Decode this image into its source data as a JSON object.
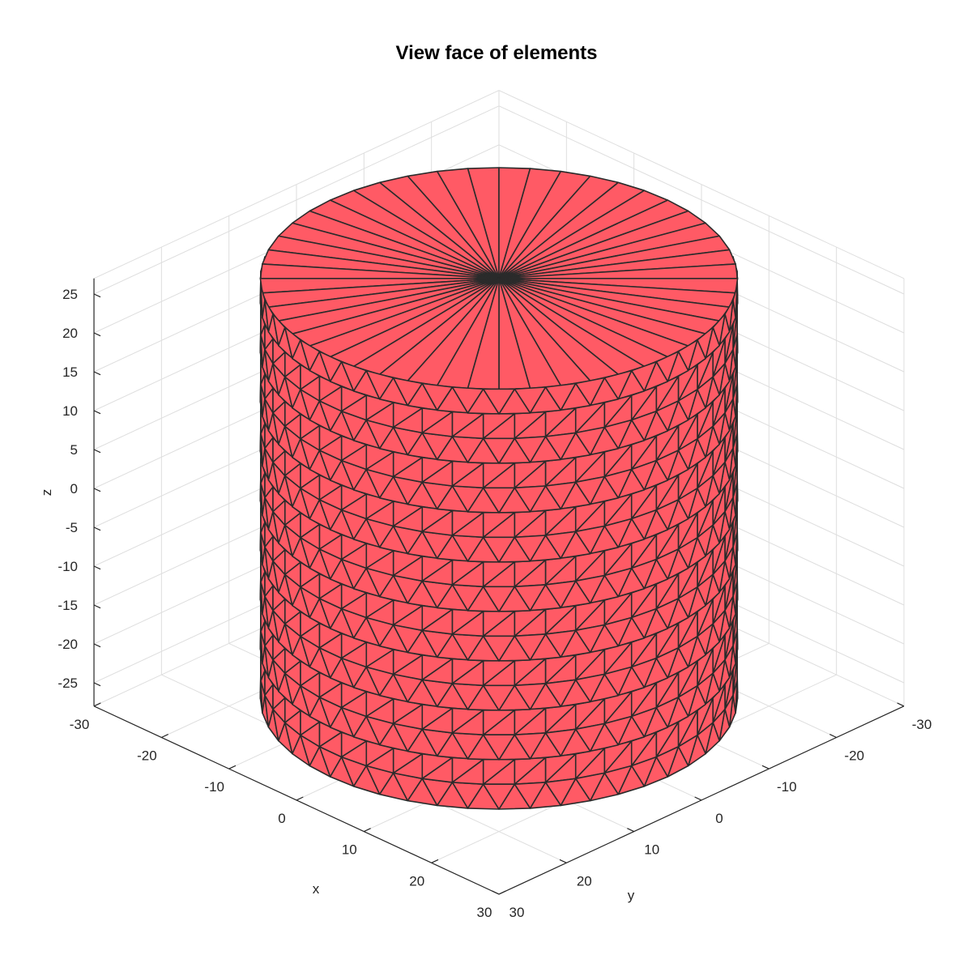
{
  "chart_data": {
    "type": "surface-mesh-3d",
    "title": "View face of elements",
    "xlabel": "x",
    "ylabel": "y",
    "zlabel": "z",
    "x_ticks": [
      "-30",
      "-20",
      "-10",
      "0",
      "10",
      "20",
      "30"
    ],
    "y_ticks": [
      "-30",
      "-20",
      "-10",
      "0",
      "10",
      "20",
      "30"
    ],
    "z_ticks": [
      "25",
      "20",
      "15",
      "10",
      "5",
      "0",
      "-5",
      "-10",
      "-15",
      "-20",
      "-25"
    ],
    "xlim": [
      -30,
      30
    ],
    "ylim": [
      -30,
      30
    ],
    "zlim": [
      -28,
      27
    ],
    "grid": true,
    "shape": "cylinder",
    "cylinder_radius": 25,
    "cylinder_z_range": [
      -27,
      27
    ],
    "face_color": "#ff5a65",
    "edge_color": "#2b2b2b"
  }
}
